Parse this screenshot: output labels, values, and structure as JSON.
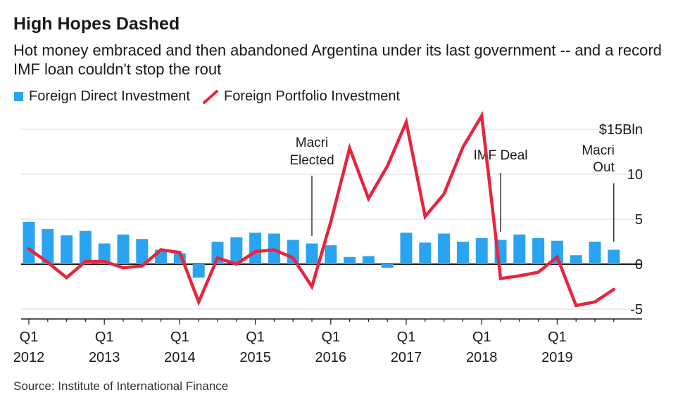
{
  "header": {
    "title": "High Hopes Dashed",
    "subtitle": "Hot money embraced and then abandoned Argentina under its last government -- and a record IMF loan couldn't stop the rout"
  },
  "legend": {
    "fdi_label": "Foreign Direct Investment",
    "fpi_label": "Foreign Portfolio Investment"
  },
  "source": "Source: Institute of International Finance",
  "colors": {
    "fdi": "#2aa4f0",
    "fpi": "#e8243c",
    "axis": "#1a1a1a",
    "grid": "#d9d9d9"
  },
  "chart_data": {
    "type": "bar+line",
    "x": [
      "Q1 2012",
      "Q2 2012",
      "Q3 2012",
      "Q4 2012",
      "Q1 2013",
      "Q2 2013",
      "Q3 2013",
      "Q4 2013",
      "Q1 2014",
      "Q2 2014",
      "Q3 2014",
      "Q4 2014",
      "Q1 2015",
      "Q2 2015",
      "Q3 2015",
      "Q4 2015",
      "Q1 2016",
      "Q2 2016",
      "Q3 2016",
      "Q4 2016",
      "Q1 2017",
      "Q2 2017",
      "Q3 2017",
      "Q4 2017",
      "Q1 2018",
      "Q2 2018",
      "Q3 2018",
      "Q4 2018",
      "Q1 2019",
      "Q2 2019",
      "Q3 2019",
      "Q4 2019"
    ],
    "series": [
      {
        "name": "Foreign Direct Investment",
        "type": "bar",
        "values": [
          4.7,
          3.9,
          3.2,
          3.7,
          2.3,
          3.3,
          2.8,
          1.6,
          1.2,
          -1.5,
          2.5,
          3.0,
          3.5,
          3.4,
          2.7,
          2.3,
          2.1,
          0.8,
          0.9,
          -0.4,
          3.5,
          2.4,
          3.4,
          2.5,
          2.9,
          2.7,
          3.3,
          2.9,
          2.6,
          1.0,
          2.5,
          1.6
        ]
      },
      {
        "name": "Foreign Portfolio Investment",
        "type": "line",
        "values": [
          1.7,
          0.2,
          -1.5,
          0.3,
          0.3,
          -0.4,
          -0.2,
          1.6,
          1.3,
          -4.2,
          0.7,
          0.0,
          1.4,
          1.6,
          0.7,
          -2.5,
          4.7,
          12.9,
          7.3,
          10.9,
          15.8,
          5.3,
          7.8,
          13.0,
          16.5,
          -1.6,
          -1.3,
          -0.9,
          0.8,
          -4.6,
          -4.2,
          -2.8
        ]
      }
    ],
    "y_ticks": [
      "$15Bln",
      "10",
      "5",
      "0",
      "-5"
    ],
    "x_ticks": [
      {
        "quarter": "Q1",
        "year": "2012"
      },
      {
        "quarter": "Q1",
        "year": "2013"
      },
      {
        "quarter": "Q1",
        "year": "2014"
      },
      {
        "quarter": "Q1",
        "year": "2015"
      },
      {
        "quarter": "Q1",
        "year": "2016"
      },
      {
        "quarter": "Q1",
        "year": "2017"
      },
      {
        "quarter": "Q1",
        "year": "2018"
      },
      {
        "quarter": "Q1",
        "year": "2019"
      }
    ],
    "ylim": [
      -6.5,
      16.5
    ],
    "annotations": [
      {
        "lines": [
          "Macri",
          "Elected"
        ],
        "at": "Q4 2015"
      },
      {
        "lines": [
          "IMF Deal"
        ],
        "at": "Q2 2018"
      },
      {
        "lines": [
          "Macri",
          "Out"
        ],
        "at": "Q4 2019"
      }
    ]
  }
}
